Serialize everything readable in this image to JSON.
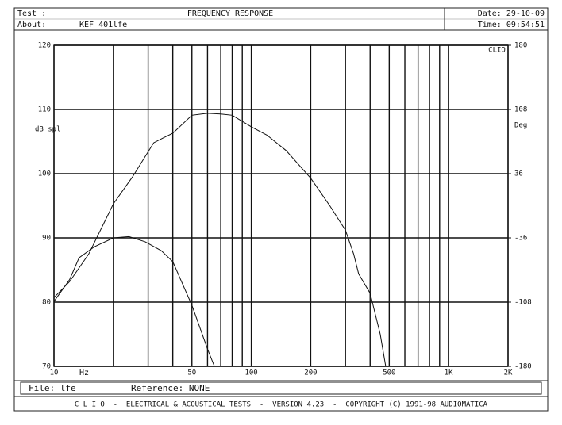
{
  "header": {
    "test": "Test :",
    "about_label": "About:",
    "about": "KEF 401lfe",
    "title": "FREQUENCY RESPONSE",
    "date": "Date: 29-10-09",
    "time": "Time: 09:54:51"
  },
  "chart_data": {
    "type": "line",
    "logo": "CLIO",
    "xlabel": "Hz",
    "ylabel": "dB spl",
    "y2label": "Deg",
    "xscale": "log",
    "xlim": [
      10,
      2000
    ],
    "xticks": [
      10,
      50,
      100,
      200,
      500,
      {
        "value": 1000,
        "label": "1K"
      },
      {
        "value": 2000,
        "label": "2K"
      }
    ],
    "xminor": [
      20,
      30,
      40,
      60,
      70,
      80,
      90,
      300,
      400,
      600,
      700,
      800,
      900
    ],
    "ylim": [
      70,
      120
    ],
    "yticks": [
      70,
      80,
      90,
      100,
      110,
      120
    ],
    "y2lim": [
      -180,
      180
    ],
    "y2ticks": [
      -180,
      -108,
      -36,
      36,
      108,
      180
    ],
    "grid": true,
    "series": [
      {
        "color": "#111111",
        "x": [
          10,
          12,
          15,
          20,
          25,
          32,
          36,
          40,
          50,
          60,
          70,
          80,
          100,
          120,
          150,
          200,
          250,
          300,
          330,
          350,
          400,
          450,
          480
        ],
        "values": [
          80.7,
          83.2,
          87.5,
          95.3,
          99.5,
          104.8,
          105.6,
          106.3,
          109.1,
          109.4,
          109.3,
          109.1,
          107.3,
          106.0,
          103.6,
          99.3,
          95.0,
          91.2,
          87.5,
          84.4,
          81.4,
          75.0,
          70
        ]
      },
      {
        "color": "#111111",
        "x": [
          10,
          12,
          13.4,
          16,
          20,
          24,
          29,
          35,
          40,
          50,
          60,
          65
        ],
        "values": [
          80.1,
          83.5,
          86.9,
          88.6,
          90,
          90.2,
          89.4,
          88.0,
          86.3,
          79.5,
          72.7,
          70
        ]
      }
    ]
  },
  "footer": {
    "file": "File: lfe",
    "reference": "Reference: NONE",
    "credits": "C L I O  -  ELECTRICAL & ACOUSTICAL TESTS  -  VERSION 4.23  -  COPYRIGHT (C) 1991-98 AUDIOMATICA"
  }
}
